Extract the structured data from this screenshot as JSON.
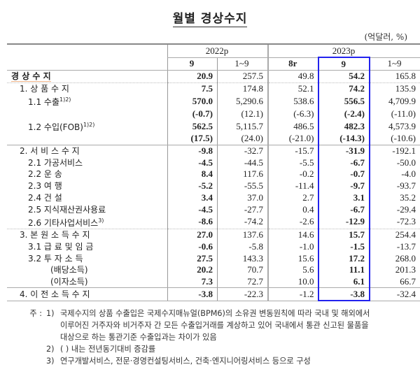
{
  "title": "월별 경상수지",
  "unit": "(억달러, %)",
  "header": {
    "groups": [
      "2022p",
      "2023p"
    ],
    "columns": [
      "9",
      "1~9",
      "8r",
      "9",
      "1~9"
    ]
  },
  "rows": [
    {
      "label": "경 상 수 지",
      "sup": "",
      "values": [
        "20.9",
        "257.5",
        "49.8",
        "54.2",
        "165.8"
      ]
    },
    {
      "label": "1. 상 품 수 지",
      "sup": "",
      "values": [
        "7.5",
        "174.8",
        "52.1",
        "74.2",
        "135.9"
      ]
    },
    {
      "label": "1.1  수출",
      "sup": "1)2)",
      "values": [
        "570.0",
        "5,290.6",
        "538.6",
        "556.5",
        "4,709.9"
      ]
    },
    {
      "label": "",
      "sup": "",
      "values": [
        "(-0.7)",
        "(12.1)",
        "(-6.3)",
        "(-2.4)",
        "(-11.0)"
      ]
    },
    {
      "label": "1.2  수입(FOB)",
      "sup": "1)2)",
      "values": [
        "562.5",
        "5,115.7",
        "486.5",
        "482.3",
        "4,573.9"
      ]
    },
    {
      "label": "",
      "sup": "",
      "values": [
        "(17.5)",
        "(24.0)",
        "(-21.0)",
        "(-14.3)",
        "(-10.6)"
      ]
    },
    {
      "label": "2. 서 비 스 수 지",
      "sup": "",
      "values": [
        "-9.8",
        "-32.7",
        "-15.7",
        "-31.9",
        "-192.1"
      ]
    },
    {
      "label": "2.1  가공서비스",
      "sup": "",
      "values": [
        "-4.5",
        "-44.5",
        "-5.5",
        "-6.7",
        "-50.0"
      ]
    },
    {
      "label": "2.2  운        송",
      "sup": "",
      "values": [
        "8.4",
        "117.6",
        "-0.2",
        "-0.7",
        "-4.0"
      ]
    },
    {
      "label": "2.3  여        행",
      "sup": "",
      "values": [
        "-5.2",
        "-55.5",
        "-11.4",
        "-9.7",
        "-93.7"
      ]
    },
    {
      "label": "2.4  건        설",
      "sup": "",
      "values": [
        "3.4",
        "37.0",
        "2.7",
        "3.1",
        "35.2"
      ]
    },
    {
      "label": "2.5  지식재산권사용료",
      "sup": "",
      "values": [
        "-4.5",
        "-27.7",
        "0.4",
        "-6.7",
        "-29.4"
      ]
    },
    {
      "label": "2.6  기타사업서비스",
      "sup": "3)",
      "values": [
        "-8.6",
        "-74.2",
        "-2.6",
        "-12.9",
        "-72.3"
      ]
    },
    {
      "label": "3. 본 원 소 득 수 지",
      "sup": "",
      "values": [
        "27.0",
        "137.6",
        "14.6",
        "15.7",
        "254.4"
      ]
    },
    {
      "label": "3.1  급 료 및 임 금",
      "sup": "",
      "values": [
        "-0.6",
        "-5.8",
        "-1.0",
        "-1.5",
        "-13.7"
      ]
    },
    {
      "label": "3.2  투  자  소  득",
      "sup": "",
      "values": [
        "27.5",
        "143.3",
        "15.6",
        "17.2",
        "268.0"
      ]
    },
    {
      "label": "(배당소득)",
      "sup": "",
      "values": [
        "20.2",
        "70.7",
        "5.6",
        "11.1",
        "201.3"
      ]
    },
    {
      "label": "(이자소득)",
      "sup": "",
      "values": [
        "7.3",
        "72.7",
        "10.0",
        "6.1",
        "66.7"
      ]
    },
    {
      "label": "4. 이 전 소 득 수 지",
      "sup": "",
      "values": [
        "-3.8",
        "-22.3",
        "-1.2",
        "-3.8",
        "-32.4"
      ]
    }
  ],
  "notes": {
    "lead": "주 :",
    "items": [
      {
        "num": "1)",
        "lines": [
          "국제수지의 상품 수출입은 국제수지매뉴얼(BPM6)의 소유권 변동원칙에 따라 국내 및 해외에서",
          "이루어진 거주자와 비거주자 간 모든 수출입거래를 계상하고 있어 국내에서 통관 신고된 물품을",
          "대상으로 하는 통관기준 수출입과는 차이가 있음"
        ]
      },
      {
        "num": "2)",
        "lines": [
          "(  ) 내는 전년동기대비 증감률"
        ]
      },
      {
        "num": "3)",
        "lines": [
          "연구개발서비스, 전문·경영컨설팅서비스, 건축·엔지니어링서비스 등으로 구성"
        ]
      }
    ]
  },
  "colors": {
    "highlight_box": "#2222ee",
    "rule": "#888888"
  }
}
